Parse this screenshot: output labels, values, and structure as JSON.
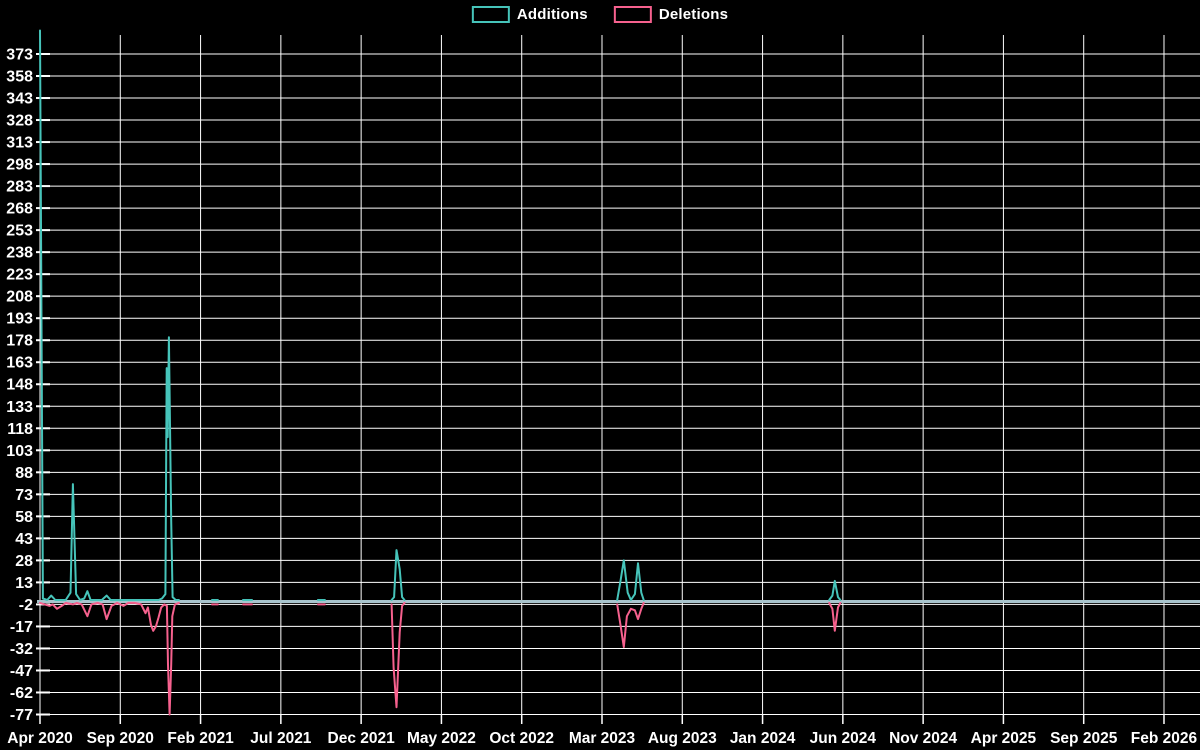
{
  "chart_data": {
    "type": "line",
    "title": "",
    "legend_position": "top-center",
    "grid": "on",
    "colors": {
      "background": "#000000",
      "grid": "#ffffff",
      "zero_line": "#a8c4cd",
      "labels": "#ffffff",
      "additions": "#46c4ba",
      "deletions": "#f6618e"
    },
    "x_axis": {
      "unit": "months since Apr 2020",
      "tick_interval_months": 5,
      "total_months": 70,
      "tick_labels": [
        "Apr 2020",
        "Sep 2020",
        "Feb 2021",
        "Jul 2021",
        "Dec 2021",
        "May 2022",
        "Oct 2022",
        "Mar 2023",
        "Aug 2023",
        "Jan 2024",
        "Jun 2024",
        "Nov 2024",
        "Apr 2025",
        "Sep 2025",
        "Feb 2026"
      ]
    },
    "y_axis": {
      "min": -77,
      "max": 373,
      "step": 15,
      "plot_top_value": 389,
      "tick_labels": [
        "373",
        "358",
        "343",
        "328",
        "313",
        "298",
        "283",
        "268",
        "253",
        "238",
        "223",
        "208",
        "193",
        "178",
        "163",
        "148",
        "133",
        "118",
        "103",
        "88",
        "73",
        "58",
        "43",
        "28",
        "13",
        "-2",
        "-17",
        "-32",
        "-47",
        "-62",
        "-77"
      ]
    },
    "series": [
      {
        "name": "Additions",
        "color": "#46c4ba",
        "segments": [
          [
            [
              0,
              389
            ],
            [
              0.18,
              2
            ],
            [
              0.45,
              1
            ],
            [
              0.7,
              4
            ],
            [
              0.95,
              1
            ],
            [
              1.3,
              1
            ],
            [
              1.6,
              1
            ],
            [
              1.9,
              6
            ],
            [
              2.05,
              80
            ],
            [
              2.25,
              5
            ],
            [
              2.5,
              1
            ],
            [
              2.75,
              2
            ],
            [
              2.95,
              7
            ],
            [
              3.15,
              1
            ],
            [
              3.5,
              1
            ],
            [
              3.85,
              1
            ],
            [
              4.15,
              4
            ],
            [
              4.4,
              1
            ],
            [
              4.8,
              1
            ],
            [
              5.2,
              1
            ],
            [
              5.6,
              1
            ],
            [
              6.0,
              1
            ],
            [
              6.45,
              1
            ],
            [
              6.72,
              1
            ],
            [
              7.05,
              1
            ],
            [
              7.38,
              1
            ],
            [
              7.6,
              2
            ],
            [
              7.81,
              5
            ],
            [
              7.89,
              159
            ],
            [
              7.95,
              112
            ],
            [
              8.03,
              180
            ],
            [
              8.17,
              55
            ],
            [
              8.26,
              3
            ],
            [
              8.45,
              1
            ],
            [
              8.65,
              1
            ]
          ],
          [
            [
              10.71,
              1
            ],
            [
              11.08,
              1
            ]
          ],
          [
            [
              12.64,
              1
            ],
            [
              13.2,
              1
            ]
          ],
          [
            [
              17.31,
              1
            ],
            [
              17.74,
              1
            ]
          ],
          [
            [
              21.9,
              1
            ],
            [
              22.05,
              3
            ],
            [
              22.2,
              35
            ],
            [
              22.4,
              22
            ],
            [
              22.55,
              3
            ],
            [
              22.7,
              1
            ]
          ],
          [
            [
              35.95,
              1
            ],
            [
              36.15,
              14
            ],
            [
              36.36,
              28
            ],
            [
              36.6,
              6
            ],
            [
              36.8,
              1
            ],
            [
              37.05,
              5
            ],
            [
              37.24,
              26
            ],
            [
              37.45,
              6
            ],
            [
              37.6,
              1
            ]
          ],
          [
            [
              49.15,
              1
            ],
            [
              49.35,
              4
            ],
            [
              49.5,
              14
            ],
            [
              49.7,
              3
            ],
            [
              49.85,
              1
            ]
          ]
        ]
      },
      {
        "name": "Deletions",
        "color": "#f6618e",
        "segments": [
          [
            [
              0,
              -1
            ],
            [
              0.3,
              -2
            ],
            [
              0.6,
              -3
            ],
            [
              0.8,
              -2
            ],
            [
              1.06,
              -5
            ],
            [
              1.35,
              -3
            ],
            [
              1.6,
              -1
            ],
            [
              2.05,
              -2
            ],
            [
              2.3,
              -1
            ],
            [
              2.6,
              -2
            ],
            [
              2.95,
              -10
            ],
            [
              3.2,
              -2
            ],
            [
              3.6,
              -1
            ],
            [
              3.9,
              -2
            ],
            [
              4.15,
              -12
            ],
            [
              4.45,
              -3
            ],
            [
              4.8,
              -1
            ],
            [
              5.2,
              -3
            ],
            [
              5.5,
              -1
            ],
            [
              5.9,
              -1
            ],
            [
              6.3,
              -2
            ],
            [
              6.57,
              -8
            ],
            [
              6.72,
              -4
            ],
            [
              6.91,
              -16
            ],
            [
              7.05,
              -20
            ],
            [
              7.22,
              -17
            ],
            [
              7.38,
              -11
            ],
            [
              7.55,
              -4
            ],
            [
              7.75,
              -2
            ],
            [
              7.9,
              -3
            ],
            [
              7.97,
              -43
            ],
            [
              8.07,
              -77
            ],
            [
              8.17,
              -43
            ],
            [
              8.24,
              -10
            ],
            [
              8.4,
              -2
            ],
            [
              8.65,
              -1
            ]
          ],
          [
            [
              10.71,
              -2
            ],
            [
              11.08,
              -2
            ]
          ],
          [
            [
              12.64,
              -2
            ],
            [
              13.2,
              -2
            ]
          ],
          [
            [
              17.31,
              -2
            ],
            [
              17.74,
              -2
            ]
          ],
          [
            [
              21.9,
              -2
            ],
            [
              22.02,
              -45
            ],
            [
              22.2,
              -72
            ],
            [
              22.4,
              -21
            ],
            [
              22.55,
              -3
            ],
            [
              22.7,
              -1
            ]
          ],
          [
            [
              35.95,
              -2
            ],
            [
              36.15,
              -16
            ],
            [
              36.36,
              -31
            ],
            [
              36.55,
              -10
            ],
            [
              36.8,
              -5
            ],
            [
              37.05,
              -6
            ],
            [
              37.24,
              -12
            ],
            [
              37.45,
              -5
            ],
            [
              37.6,
              -1
            ]
          ],
          [
            [
              49.15,
              -1
            ],
            [
              49.35,
              -5
            ],
            [
              49.5,
              -20
            ],
            [
              49.7,
              -4
            ],
            [
              49.85,
              -1
            ]
          ]
        ]
      }
    ]
  }
}
